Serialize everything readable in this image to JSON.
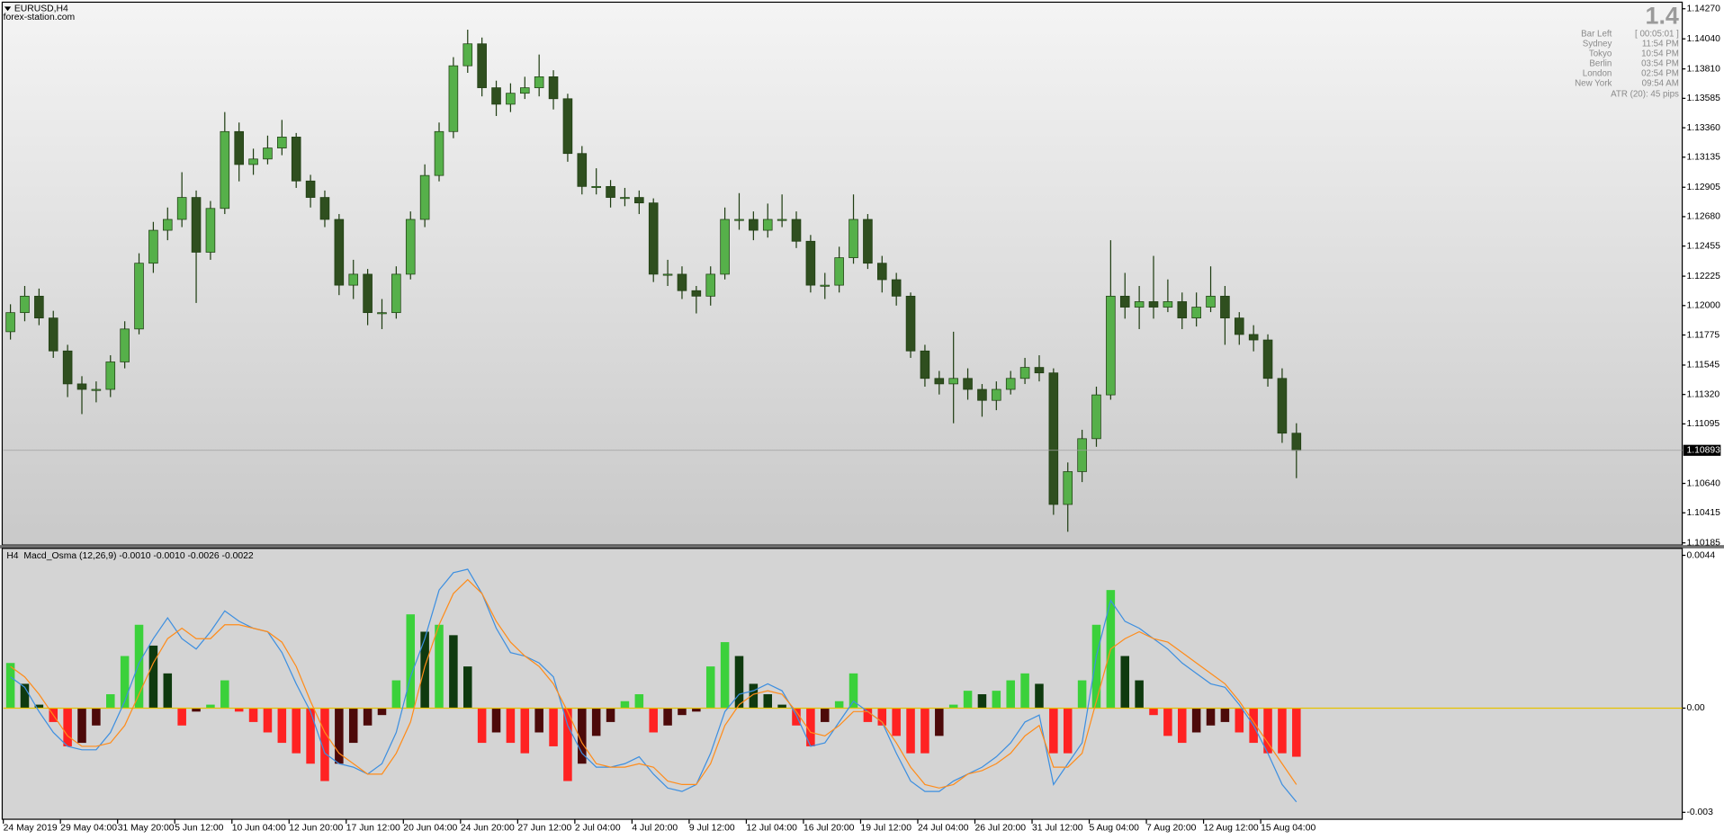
{
  "chart_data": [
    {
      "type": "candlestick",
      "title": "EURUSD,H4",
      "subtitle": "forex-station.com",
      "xlim": [
        -0.5,
        117
      ],
      "ylim": [
        1.10185,
        1.1427
      ],
      "grid": false,
      "up_color": "#56b04a",
      "down_color": "#2f4f1f",
      "wick_color": "#1f3d12",
      "current_price": 1.10893,
      "yticks": [
        {
          "value": 1.1427,
          "label": "1.14270"
        },
        {
          "value": 1.1404,
          "label": "1.14040"
        },
        {
          "value": 1.1381,
          "label": "1.13810"
        },
        1.13585,
        {
          "value": 1.1336,
          "label": "1.13360"
        },
        1.13135,
        1.12905,
        {
          "value": 1.1268,
          "label": "1.12680"
        },
        1.12455,
        1.12225,
        {
          "value": 1.12,
          "label": "1.12000"
        },
        1.11775,
        1.11545,
        {
          "value": 1.1132,
          "label": "1.11320"
        },
        1.11095,
        {
          "value": 1.1064,
          "label": "1.10640"
        },
        1.10415,
        1.10185
      ],
      "xticks": [
        {
          "value": 0,
          "label": "24 May 2019"
        },
        {
          "value": 4,
          "label": "29 May 04:00"
        },
        {
          "value": 8,
          "label": "31 May 20:00"
        },
        {
          "value": 12,
          "label": "5 Jun 12:00"
        },
        {
          "value": 16,
          "label": "10 Jun 04:00"
        },
        {
          "value": 20,
          "label": "12 Jun 20:00"
        },
        {
          "value": 24,
          "label": "17 Jun 12:00"
        },
        {
          "value": 28,
          "label": "20 Jun 04:00"
        },
        {
          "value": 32,
          "label": "24 Jun 20:00"
        },
        {
          "value": 36,
          "label": "27 Jun 12:00"
        },
        {
          "value": 40,
          "label": "2 Jul 04:00"
        },
        {
          "value": 44,
          "label": "4 Jul 20:00"
        },
        {
          "value": 48,
          "label": "9 Jul 12:00"
        },
        {
          "value": 52,
          "label": "12 Jul 04:00"
        },
        {
          "value": 56,
          "label": "16 Jul 20:00"
        },
        {
          "value": 60,
          "label": "19 Jul 12:00"
        },
        {
          "value": 64,
          "label": "24 Jul 04:00"
        },
        {
          "value": 68,
          "label": "26 Jul 20:00"
        },
        {
          "value": 72,
          "label": "31 Jul 12:00"
        },
        {
          "value": 76,
          "label": "5 Aug 04:00"
        },
        {
          "value": 80,
          "label": "7 Aug 20:00"
        },
        {
          "value": 84,
          "label": "12 Aug 12:00"
        },
        {
          "value": 88,
          "label": "15 Aug 04:00"
        }
      ],
      "open": [
        1.118,
        1.11946,
        1.12072,
        1.11905,
        1.11653,
        1.11401,
        1.11359,
        1.11359,
        1.11569,
        1.11821,
        1.12324,
        1.12576,
        1.12659,
        1.12827,
        1.12408,
        1.12743,
        1.13331,
        1.13079,
        1.13121,
        1.13205,
        1.13289,
        1.12953,
        1.12827,
        1.12659,
        1.12156,
        1.1224,
        1.11946,
        1.11946,
        1.1224,
        1.12659,
        1.12995,
        1.13331,
        1.13834,
        1.14002,
        1.13666,
        1.1354,
        1.13624,
        1.13666,
        1.1375,
        1.13582,
        1.13163,
        1.12911,
        1.12911,
        1.12827,
        1.12827,
        1.12785,
        1.1224,
        1.1224,
        1.12114,
        1.12072,
        1.1224,
        1.12659,
        1.12659,
        1.12576,
        1.12659,
        1.12659,
        1.12492,
        1.12156,
        1.12156,
        1.12366,
        1.12659,
        1.12324,
        1.12198,
        1.12072,
        1.11653,
        1.11443,
        1.11401,
        1.11443,
        1.11359,
        1.11275,
        1.11359,
        1.11443,
        1.11527,
        1.11485,
        1.10479,
        1.1073,
        1.10982,
        1.11317,
        1.12072,
        1.11988,
        1.1203,
        1.11988,
        1.1203,
        1.11905,
        1.11988,
        1.12072,
        1.11905,
        1.11779,
        1.11737,
        1.11443,
        1.11024
      ],
      "high": [
        1.1201,
        1.1215,
        1.1213,
        1.1196,
        1.117,
        1.1146,
        1.1142,
        1.1162,
        1.1188,
        1.124,
        1.1264,
        1.1275,
        1.1302,
        1.1288,
        1.128,
        1.1348,
        1.134,
        1.132,
        1.133,
        1.1342,
        1.1332,
        1.13,
        1.1288,
        1.127,
        1.1235,
        1.1228,
        1.1205,
        1.123,
        1.1272,
        1.1308,
        1.134,
        1.139,
        1.1411,
        1.1405,
        1.1372,
        1.137,
        1.1375,
        1.1392,
        1.138,
        1.1362,
        1.1322,
        1.1305,
        1.1296,
        1.129,
        1.1288,
        1.1282,
        1.1235,
        1.123,
        1.1215,
        1.123,
        1.1275,
        1.1286,
        1.1272,
        1.1278,
        1.1285,
        1.1272,
        1.1254,
        1.1225,
        1.1245,
        1.1285,
        1.127,
        1.1238,
        1.1225,
        1.121,
        1.117,
        1.115,
        1.118,
        1.1152,
        1.114,
        1.1142,
        1.115,
        1.116,
        1.1162,
        1.1152,
        1.108,
        1.1105,
        1.1138,
        1.125,
        1.1225,
        1.1215,
        1.1238,
        1.122,
        1.121,
        1.121,
        1.123,
        1.1215,
        1.1195,
        1.1185,
        1.1178,
        1.1152,
        1.111
      ],
      "low": [
        1.1174,
        1.1188,
        1.1185,
        1.116,
        1.113,
        1.1117,
        1.1126,
        1.113,
        1.1152,
        1.1178,
        1.1225,
        1.125,
        1.126,
        1.1202,
        1.1235,
        1.127,
        1.1295,
        1.13,
        1.1308,
        1.1315,
        1.129,
        1.1275,
        1.126,
        1.1208,
        1.1205,
        1.1185,
        1.1182,
        1.119,
        1.122,
        1.126,
        1.1295,
        1.1328,
        1.1378,
        1.136,
        1.1345,
        1.1348,
        1.1358,
        1.136,
        1.135,
        1.131,
        1.1285,
        1.1285,
        1.1275,
        1.1276,
        1.127,
        1.1218,
        1.1215,
        1.1205,
        1.1194,
        1.12,
        1.122,
        1.1258,
        1.125,
        1.1252,
        1.126,
        1.1244,
        1.121,
        1.1205,
        1.121,
        1.1232,
        1.1228,
        1.121,
        1.12,
        1.116,
        1.1138,
        1.1132,
        1.111,
        1.1128,
        1.1115,
        1.112,
        1.1132,
        1.114,
        1.1142,
        1.104,
        1.1027,
        1.1065,
        1.1092,
        1.1128,
        1.119,
        1.1182,
        1.119,
        1.1195,
        1.1182,
        1.1184,
        1.1195,
        1.117,
        1.117,
        1.1165,
        1.1138,
        1.1095,
        1.1068
      ],
      "close": [
        1.11946,
        1.12072,
        1.11905,
        1.11653,
        1.11401,
        1.11359,
        1.11359,
        1.11569,
        1.11821,
        1.12324,
        1.12576,
        1.12659,
        1.12827,
        1.12408,
        1.12743,
        1.13331,
        1.13079,
        1.13121,
        1.13205,
        1.13289,
        1.12953,
        1.12827,
        1.12659,
        1.12156,
        1.1224,
        1.11946,
        1.11946,
        1.1224,
        1.12659,
        1.12995,
        1.13331,
        1.13834,
        1.14002,
        1.13666,
        1.1354,
        1.13624,
        1.13666,
        1.1375,
        1.13582,
        1.13163,
        1.12911,
        1.12911,
        1.12827,
        1.12827,
        1.12785,
        1.1224,
        1.1224,
        1.12114,
        1.12072,
        1.1224,
        1.12659,
        1.12659,
        1.12576,
        1.12659,
        1.12659,
        1.12492,
        1.12156,
        1.12156,
        1.12366,
        1.12659,
        1.12324,
        1.12198,
        1.12072,
        1.11653,
        1.11443,
        1.11401,
        1.11443,
        1.11359,
        1.11275,
        1.11359,
        1.11443,
        1.11527,
        1.11485,
        1.10479,
        1.1073,
        1.10982,
        1.11317,
        1.12072,
        1.11988,
        1.1203,
        1.11988,
        1.1203,
        1.11905,
        1.11988,
        1.12072,
        1.11905,
        1.11779,
        1.11737,
        1.11443,
        1.11024,
        1.10893
      ]
    },
    {
      "type": "macd",
      "title": "H4  Macd_Osma (12,26,9) -0.0010 -0.0010 -0.0026 -0.0022",
      "ylim": [
        -0.0032,
        0.0046
      ],
      "yticks": [
        0.0044,
        {
          "value": 0,
          "label": "0.00"
        },
        -0.003
      ],
      "zero_color": "#e6c200",
      "histogram": {
        "colors": {
          "rising_positive": "#3bd13b",
          "falling_positive": "#0f3a0f",
          "falling_negative": "#ff2222",
          "rising_negative": "#4d0a0a"
        },
        "values": [
          0.0013,
          0.0007,
          0.0001,
          -0.0004,
          -0.0011,
          -0.001,
          -0.0005,
          0.0004,
          0.0015,
          0.0024,
          0.0018,
          0.001,
          -0.0005,
          -0.0001,
          0.0001,
          0.0008,
          -0.0001,
          -0.0004,
          -0.0007,
          -0.001,
          -0.0013,
          -0.0016,
          -0.0021,
          -0.0016,
          -0.001,
          -0.0005,
          -0.0002,
          0.0008,
          0.0027,
          0.0022,
          0.0024,
          0.0021,
          0.0012,
          -0.001,
          -0.0007,
          -0.001,
          -0.0013,
          -0.0007,
          -0.0011,
          -0.0021,
          -0.0016,
          -0.0008,
          -0.0004,
          0.0002,
          0.0004,
          -0.0007,
          -0.0005,
          -0.0002,
          -0.0001,
          0.0012,
          0.0019,
          0.0015,
          0.0007,
          0.0004,
          0.0001,
          -0.0005,
          -0.0011,
          -0.0004,
          0.0002,
          0.001,
          -0.0004,
          -0.0005,
          -0.0008,
          -0.0013,
          -0.0013,
          -0.0008,
          0.0001,
          0.0005,
          0.0004,
          0.0005,
          0.0008,
          0.001,
          0.0007,
          -0.0013,
          -0.0013,
          0.0008,
          0.0024,
          0.0034,
          0.0015,
          0.0008,
          -0.0002,
          -0.0008,
          -0.001,
          -0.0007,
          -0.0005,
          -0.0004,
          -0.0007,
          -0.001,
          -0.0013,
          -0.0013,
          -0.0014
        ]
      },
      "lines": [
        {
          "color": "#3d8fe0",
          "values": [
            0.0009,
            0.0006,
            -0.0001,
            -0.0007,
            -0.0011,
            -0.0012,
            -0.0012,
            -0.0007,
            0.0002,
            0.0013,
            0.002,
            0.0026,
            0.002,
            0.0017,
            0.0022,
            0.0028,
            0.0025,
            0.0023,
            0.0022,
            0.0016,
            0.0007,
            -0.0001,
            -0.0013,
            -0.0016,
            -0.0017,
            -0.0019,
            -0.0016,
            -0.0007,
            0.0009,
            0.002,
            0.0034,
            0.0039,
            0.004,
            0.0033,
            0.0023,
            0.0016,
            0.0015,
            0.0013,
            0.0009,
            -0.0005,
            -0.0013,
            -0.0017,
            -0.0017,
            -0.0016,
            -0.0014,
            -0.0019,
            -0.0023,
            -0.0024,
            -0.0022,
            -0.0013,
            -0.0001,
            0.0004,
            0.0005,
            0.0007,
            0.0005,
            -0.0002,
            -0.0011,
            -0.001,
            -0.0004,
            0.0002,
            -0.0001,
            -0.0004,
            -0.0013,
            -0.0021,
            -0.0024,
            -0.0024,
            -0.0021,
            -0.0019,
            -0.0017,
            -0.0014,
            -0.001,
            -0.0004,
            -0.0002,
            -0.0022,
            -0.0016,
            -0.001,
            0.0015,
            0.0031,
            0.0025,
            0.0023,
            0.002,
            0.0017,
            0.0013,
            0.001,
            0.0007,
            0.0006,
            0.0001,
            -0.0005,
            -0.0013,
            -0.0022,
            -0.0027
          ]
        },
        {
          "color": "#ff8c1a",
          "values": [
            0.0012,
            0.0009,
            0.0004,
            -0.0002,
            -0.0008,
            -0.0011,
            -0.0011,
            -0.001,
            -0.0005,
            0.0004,
            0.0013,
            0.002,
            0.0023,
            0.002,
            0.002,
            0.0024,
            0.0024,
            0.0023,
            0.0022,
            0.0019,
            0.0012,
            0.0002,
            -0.0007,
            -0.0013,
            -0.0016,
            -0.0019,
            -0.0019,
            -0.0013,
            -0.0004,
            0.0012,
            0.0024,
            0.0033,
            0.0037,
            0.0033,
            0.0025,
            0.0019,
            0.0015,
            0.0012,
            0.0007,
            -0.0001,
            -0.001,
            -0.0016,
            -0.0017,
            -0.0017,
            -0.0016,
            -0.0017,
            -0.0021,
            -0.0022,
            -0.0022,
            -0.0016,
            -0.0005,
            0.0001,
            0.0004,
            0.0005,
            0.0004,
            -0.0001,
            -0.0007,
            -0.0008,
            -0.0005,
            -0.0001,
            -0.0001,
            -0.0004,
            -0.001,
            -0.0017,
            -0.0022,
            -0.0023,
            -0.0022,
            -0.0019,
            -0.0018,
            -0.0016,
            -0.0013,
            -0.0008,
            -0.0005,
            -0.0017,
            -0.0017,
            -0.0013,
            0.0002,
            0.0017,
            0.002,
            0.0022,
            0.002,
            0.0019,
            0.0016,
            0.0013,
            0.001,
            0.0007,
            0.0002,
            -0.0004,
            -0.001,
            -0.0016,
            -0.0022
          ]
        }
      ]
    }
  ],
  "info_panel": {
    "spread": "1.4",
    "rows": [
      {
        "label": "Bar Left",
        "value": "[ 00:05:01 ]"
      },
      {
        "label": "Sydney",
        "value": "11:54 PM"
      },
      {
        "label": "Tokyo",
        "value": "10:54 PM"
      },
      {
        "label": "Berlin",
        "value": "03:54 PM"
      },
      {
        "label": "London",
        "value": "02:54 PM"
      },
      {
        "label": "New York",
        "value": "09:54 AM"
      }
    ],
    "atr": "ATR (20): 45 pips"
  }
}
